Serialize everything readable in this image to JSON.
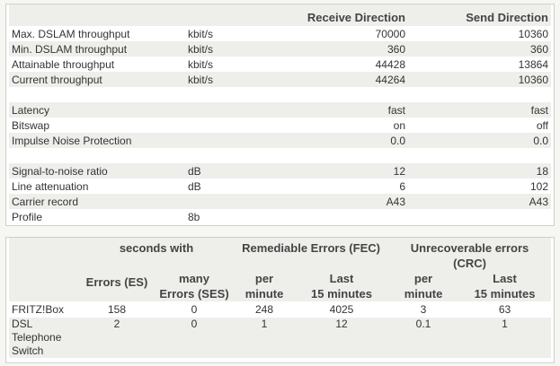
{
  "overview": {
    "headers": {
      "receive": "Receive Direction",
      "send": "Send Direction"
    },
    "rows": [
      {
        "label": "Max. DSLAM throughput",
        "unit": "kbit/s",
        "receive": "70000",
        "send": "10360"
      },
      {
        "label": "Min. DSLAM throughput",
        "unit": "kbit/s",
        "receive": "360",
        "send": "360"
      },
      {
        "label": "Attainable throughput",
        "unit": "kbit/s",
        "receive": "44428",
        "send": "13864"
      },
      {
        "label": "Current throughput",
        "unit": "kbit/s",
        "receive": "44264",
        "send": "10360"
      },
      {
        "label": "Latency",
        "unit": "",
        "receive": "fast",
        "send": "fast"
      },
      {
        "label": "Bitswap",
        "unit": "",
        "receive": "on",
        "send": "off"
      },
      {
        "label": "Impulse Noise Protection",
        "unit": "",
        "receive": "0.0",
        "send": "0.0"
      },
      {
        "label": "Signal-to-noise ratio",
        "unit": "dB",
        "receive": "12",
        "send": "18"
      },
      {
        "label": "Line attenuation",
        "unit": "dB",
        "receive": "6",
        "send": "102"
      },
      {
        "label": "Carrier record",
        "unit": "",
        "receive": "A43",
        "send": "A43"
      },
      {
        "label": "Profile",
        "unit": "8b",
        "receive": "",
        "send": ""
      }
    ]
  },
  "errors": {
    "group_headers": {
      "seconds_with": "seconds with",
      "fec": "Remediable Errors (FEC)",
      "crc_line1": "Unrecoverable errors",
      "crc_line2": "(CRC)"
    },
    "sub_headers": {
      "es": "Errors (ES)",
      "ses_line1": "many",
      "ses_line2": "Errors (SES)",
      "fec_per_line1": "per",
      "fec_per_line2": "minute",
      "fec_last_line1": "Last",
      "fec_last_line2": "15 minutes",
      "crc_per_line1": "per",
      "crc_per_line2": "minute",
      "crc_last_line1": "Last",
      "crc_last_line2": "15 minutes"
    },
    "rows": [
      {
        "label_lines": [
          "FRITZ!Box"
        ],
        "es": "158",
        "ses": "0",
        "fec_per": "248",
        "fec_last": "4025",
        "crc_per": "3",
        "crc_last": "63"
      },
      {
        "label_lines": [
          "DSL",
          "Telephone",
          "Switch"
        ],
        "es": "2",
        "ses": "0",
        "fec_per": "1",
        "fec_last": "12",
        "crc_per": "0.1",
        "crc_last": "1"
      }
    ]
  }
}
